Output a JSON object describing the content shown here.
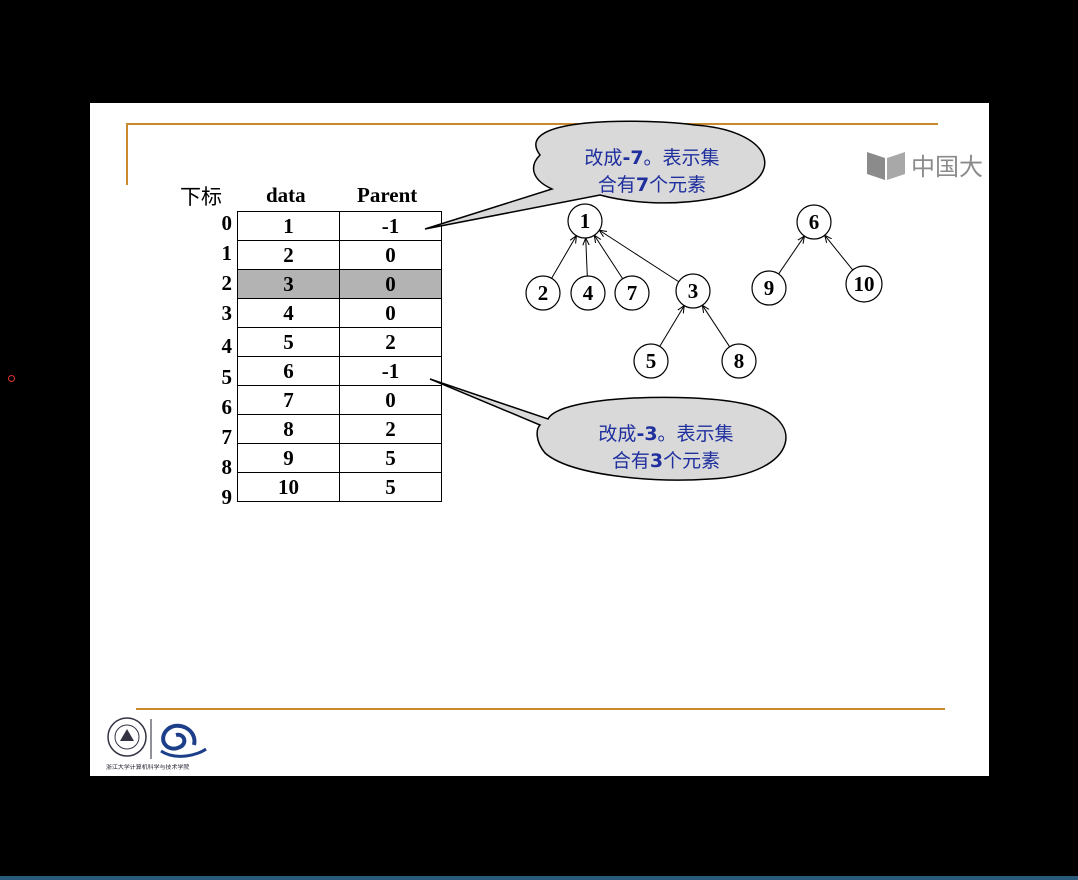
{
  "slide": {
    "headers": {
      "index": "下标",
      "data": "data",
      "parent": "Parent"
    },
    "indices": [
      "0",
      "1",
      "2",
      "3",
      "4",
      "5",
      "6",
      "7",
      "8",
      "9"
    ],
    "rows": [
      {
        "data": "1",
        "parent": "-1"
      },
      {
        "data": "2",
        "parent": "0"
      },
      {
        "data": "3",
        "parent": "0"
      },
      {
        "data": "4",
        "parent": "0"
      },
      {
        "data": "5",
        "parent": "2"
      },
      {
        "data": "6",
        "parent": "-1"
      },
      {
        "data": "7",
        "parent": "0"
      },
      {
        "data": "8",
        "parent": "2"
      },
      {
        "data": "9",
        "parent": "5"
      },
      {
        "data": "10",
        "parent": "5"
      }
    ],
    "highlight_row": 2,
    "callout_top": {
      "pre": "改成",
      "num": "-7",
      "mid": "。表示集",
      "line2_pre": "合有",
      "line2_num": "7",
      "line2_post": "个元素"
    },
    "callout_bottom": {
      "pre": "改成",
      "num": "-3",
      "mid": "。表示集",
      "line2_pre": "合有",
      "line2_num": "3",
      "line2_post": "个元素"
    },
    "tree1": {
      "root": "1",
      "children": [
        "2",
        "4",
        "7",
        "3"
      ],
      "sub_children": [
        "5",
        "8"
      ]
    },
    "tree2": {
      "root": "6",
      "children": [
        "9",
        "10"
      ]
    },
    "watermark": "中国大",
    "logo_caption": "浙江大学计算机科学与技术学院"
  },
  "colors": {
    "rule": "#c98a2e",
    "callout_text": "#1f2f9e",
    "highlight": "#b3b3b3"
  }
}
